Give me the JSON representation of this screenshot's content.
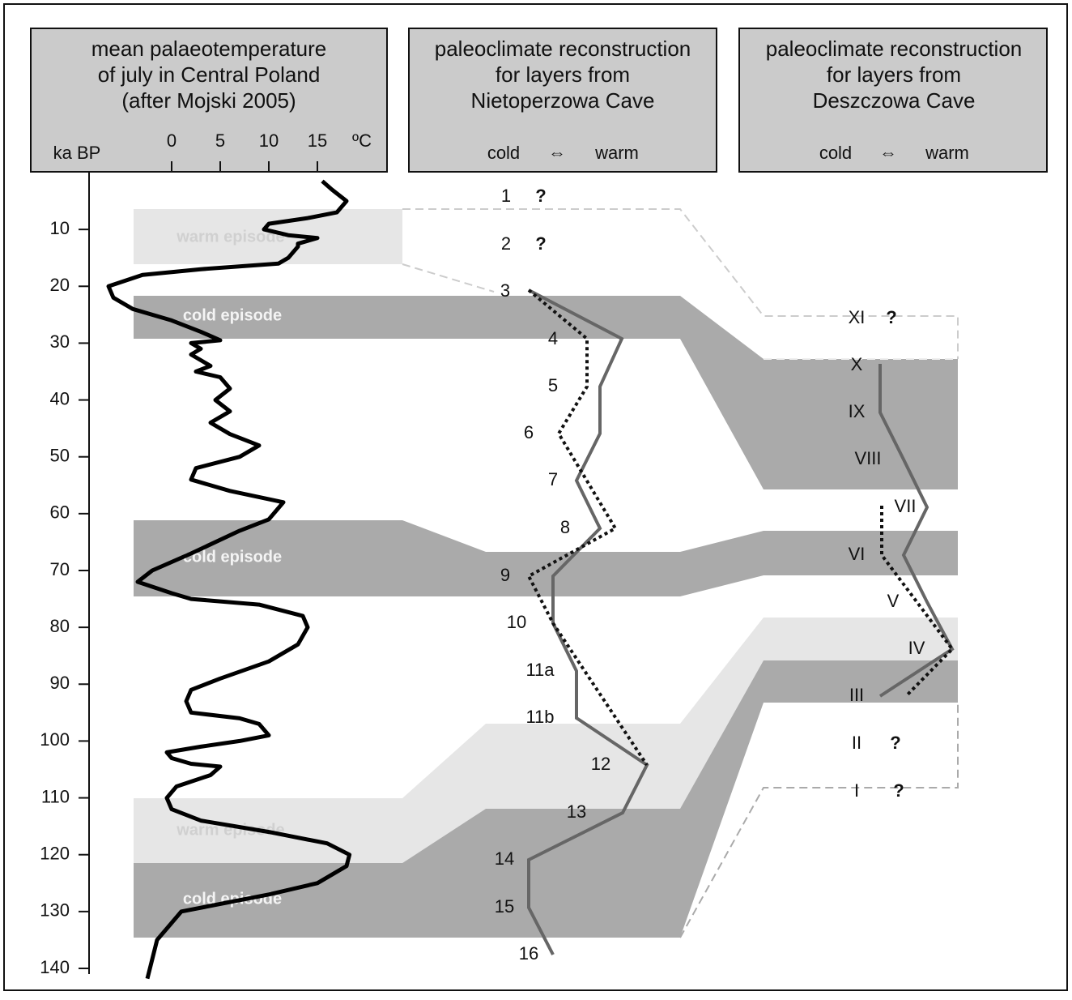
{
  "panels": [
    {
      "title": [
        "mean palaeotemperature",
        "of july in Central Poland",
        "(after Mojski 2005)"
      ],
      "age_label": "ka BP",
      "temperature_label": "ºC",
      "xticks": [
        0,
        5,
        10,
        15
      ],
      "xlim": [
        -8,
        20
      ]
    },
    {
      "title": [
        "paleoclimate reconstruction",
        "for layers from",
        "Nietoperzowa Cave"
      ],
      "scale": [
        "cold",
        "⇔",
        "warm"
      ],
      "layers": [
        {
          "label": "1",
          "note": "?"
        },
        {
          "label": "2",
          "note": "?"
        },
        {
          "label": "3"
        },
        {
          "label": "4"
        },
        {
          "label": "5"
        },
        {
          "label": "6"
        },
        {
          "label": "7"
        },
        {
          "label": "8"
        },
        {
          "label": "9"
        },
        {
          "label": "10"
        },
        {
          "label": "11a"
        },
        {
          "label": "11b"
        },
        {
          "label": "12"
        },
        {
          "label": "13"
        },
        {
          "label": "14"
        },
        {
          "label": "15"
        },
        {
          "label": "16"
        }
      ]
    },
    {
      "title": [
        "paleoclimate reconstruction",
        "for layers from",
        "Deszczowa Cave"
      ],
      "scale": [
        "cold",
        "⇔",
        "warm"
      ],
      "layers": [
        {
          "label": "XI",
          "note": "?"
        },
        {
          "label": "X"
        },
        {
          "label": "IX"
        },
        {
          "label": "VIII"
        },
        {
          "label": "VII"
        },
        {
          "label": "VI"
        },
        {
          "label": "V"
        },
        {
          "label": "IV"
        },
        {
          "label": "III"
        },
        {
          "label": "II",
          "note": "?"
        },
        {
          "label": "I",
          "note": "?"
        }
      ]
    }
  ],
  "age_axis": {
    "ylim": [
      0,
      141
    ],
    "yticks": [
      10,
      20,
      30,
      40,
      50,
      60,
      70,
      80,
      90,
      100,
      110,
      120,
      130,
      140
    ]
  },
  "episodes": [
    "warm episode",
    "cold episode",
    "cold episode",
    "warm episode",
    "cold episode"
  ],
  "temperature_curve": {
    "age": [
      141.8,
      135,
      130,
      127,
      125,
      122,
      120,
      118,
      116,
      114,
      112,
      110,
      108,
      106,
      104.5,
      104,
      103,
      102,
      101,
      100,
      99,
      97,
      96,
      95,
      93,
      91,
      89,
      86,
      83,
      80,
      78,
      76,
      75,
      74,
      72,
      70,
      67,
      63,
      61,
      58,
      56,
      54,
      52,
      50,
      48,
      46,
      44,
      42,
      40,
      38,
      36,
      35,
      34,
      33,
      32,
      31,
      30,
      29.5,
      28,
      26,
      24,
      22,
      20,
      18,
      17,
      16,
      15,
      13,
      12.5,
      11.5,
      11,
      10,
      9,
      8,
      7,
      5,
      3,
      1.5
    ],
    "temperature": [
      -2.5,
      -1.5,
      1,
      10,
      15,
      18,
      18.3,
      16,
      10,
      3,
      0,
      -0.5,
      0.5,
      4,
      5,
      2,
      0,
      -0.5,
      3,
      7,
      10,
      9,
      7,
      2,
      1.5,
      2,
      5,
      10,
      13,
      14,
      13.5,
      9,
      2,
      0,
      -3.5,
      -2,
      2,
      7,
      10,
      11.5,
      6,
      2,
      2.5,
      7,
      9,
      6,
      4,
      6,
      4.5,
      6,
      5,
      2.5,
      4,
      3,
      2,
      3,
      2,
      5,
      3,
      0,
      -4,
      -6,
      -6.5,
      -3,
      3,
      11,
      12,
      13,
      13,
      15,
      12,
      9.5,
      10,
      14,
      17,
      18,
      16.5,
      15.5
    ]
  }
}
